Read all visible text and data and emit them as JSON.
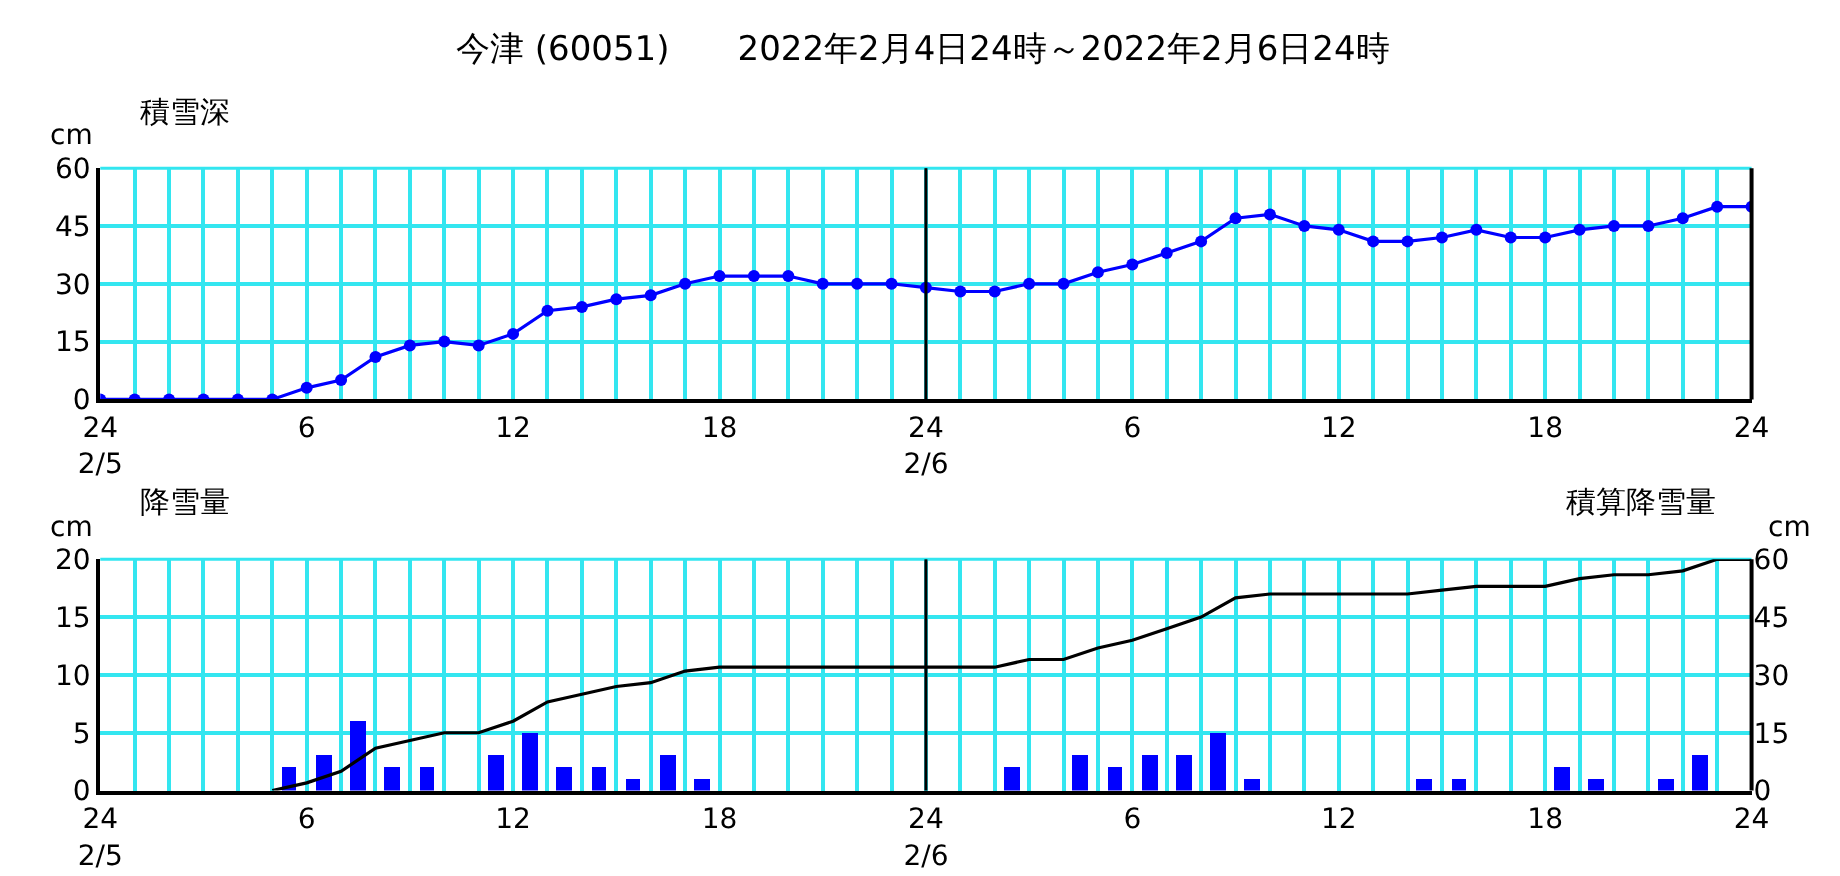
{
  "chart_data": [
    {
      "type": "line",
      "title": "今津 (60051)　　2022年2月4日24時～2022年2月6日24時",
      "ylabel": "cm",
      "annotations": [
        "積雪深"
      ],
      "x": [
        "2022-02-05T00:00",
        "2022-02-05T01:00",
        "2022-02-05T02:00",
        "2022-02-05T03:00",
        "2022-02-05T04:00",
        "2022-02-05T05:00",
        "2022-02-05T06:00",
        "2022-02-05T07:00",
        "2022-02-05T08:00",
        "2022-02-05T09:00",
        "2022-02-05T10:00",
        "2022-02-05T11:00",
        "2022-02-05T12:00",
        "2022-02-05T13:00",
        "2022-02-05T14:00",
        "2022-02-05T15:00",
        "2022-02-05T16:00",
        "2022-02-05T17:00",
        "2022-02-05T18:00",
        "2022-02-05T19:00",
        "2022-02-05T20:00",
        "2022-02-05T21:00",
        "2022-02-05T22:00",
        "2022-02-05T23:00",
        "2022-02-06T00:00",
        "2022-02-06T01:00",
        "2022-02-06T02:00",
        "2022-02-06T03:00",
        "2022-02-06T04:00",
        "2022-02-06T05:00",
        "2022-02-06T06:00",
        "2022-02-06T07:00",
        "2022-02-06T08:00",
        "2022-02-06T09:00",
        "2022-02-06T10:00",
        "2022-02-06T11:00",
        "2022-02-06T12:00",
        "2022-02-06T13:00",
        "2022-02-06T14:00",
        "2022-02-06T15:00",
        "2022-02-06T16:00",
        "2022-02-06T17:00",
        "2022-02-06T18:00",
        "2022-02-06T19:00",
        "2022-02-06T20:00",
        "2022-02-06T21:00",
        "2022-02-06T22:00",
        "2022-02-06T23:00",
        "2022-02-07T00:00"
      ],
      "series": [
        {
          "color": "#0000ff",
          "values": [
            0,
            0,
            0,
            0,
            0,
            0,
            3,
            5,
            11,
            14,
            15,
            14,
            17,
            23,
            24,
            26,
            27,
            30,
            32,
            32,
            32,
            30,
            30,
            30,
            29,
            28,
            28,
            30,
            30,
            33,
            35,
            38,
            41,
            47,
            48,
            45,
            44,
            41,
            41,
            42,
            44,
            42,
            42,
            44,
            45,
            45,
            47,
            50,
            50
          ]
        }
      ],
      "marker": "circle",
      "grid": true,
      "xlim": [
        "2022-02-05T00:00",
        "2022-02-07T00:00"
      ],
      "ylim": [
        0,
        60
      ],
      "yticks": [
        0,
        15,
        30,
        45,
        60
      ],
      "xticks": [
        {
          "value": "2022-02-05T00:00",
          "label": "24\n2/5"
        },
        {
          "value": "2022-02-05T01:00",
          "label": null
        },
        {
          "value": "2022-02-05T02:00",
          "label": null
        },
        {
          "value": "2022-02-05T03:00",
          "label": null
        },
        {
          "value": "2022-02-05T04:00",
          "label": null
        },
        {
          "value": "2022-02-05T05:00",
          "label": null
        },
        {
          "value": "2022-02-05T06:00",
          "label": "6"
        },
        {
          "value": "2022-02-05T07:00",
          "label": null
        },
        {
          "value": "2022-02-05T08:00",
          "label": null
        },
        {
          "value": "2022-02-05T09:00",
          "label": null
        },
        {
          "value": "2022-02-05T10:00",
          "label": null
        },
        {
          "value": "2022-02-05T11:00",
          "label": null
        },
        {
          "value": "2022-02-05T12:00",
          "label": "12"
        },
        {
          "value": "2022-02-05T13:00",
          "label": null
        },
        {
          "value": "2022-02-05T14:00",
          "label": null
        },
        {
          "value": "2022-02-05T15:00",
          "label": null
        },
        {
          "value": "2022-02-05T16:00",
          "label": null
        },
        {
          "value": "2022-02-05T17:00",
          "label": null
        },
        {
          "value": "2022-02-05T18:00",
          "label": "18"
        },
        {
          "value": "2022-02-05T19:00",
          "label": null
        },
        {
          "value": "2022-02-05T20:00",
          "label": null
        },
        {
          "value": "2022-02-05T21:00",
          "label": null
        },
        {
          "value": "2022-02-05T22:00",
          "label": null
        },
        {
          "value": "2022-02-05T23:00",
          "label": null
        },
        {
          "value": "2022-02-06T00:00",
          "label": "24\n2/6"
        },
        {
          "value": "2022-02-06T01:00",
          "label": null
        },
        {
          "value": "2022-02-06T02:00",
          "label": null
        },
        {
          "value": "2022-02-06T03:00",
          "label": null
        },
        {
          "value": "2022-02-06T04:00",
          "label": null
        },
        {
          "value": "2022-02-06T05:00",
          "label": null
        },
        {
          "value": "2022-02-06T06:00",
          "label": "6"
        },
        {
          "value": "2022-02-06T07:00",
          "label": null
        },
        {
          "value": "2022-02-06T08:00",
          "label": null
        },
        {
          "value": "2022-02-06T09:00",
          "label": null
        },
        {
          "value": "2022-02-06T10:00",
          "label": null
        },
        {
          "value": "2022-02-06T11:00",
          "label": null
        },
        {
          "value": "2022-02-06T12:00",
          "label": "12"
        },
        {
          "value": "2022-02-06T13:00",
          "label": null
        },
        {
          "value": "2022-02-06T14:00",
          "label": null
        },
        {
          "value": "2022-02-06T15:00",
          "label": null
        },
        {
          "value": "2022-02-06T16:00",
          "label": null
        },
        {
          "value": "2022-02-06T17:00",
          "label": null
        },
        {
          "value": "2022-02-06T18:00",
          "label": "18"
        },
        {
          "value": "2022-02-06T19:00",
          "label": null
        },
        {
          "value": "2022-02-06T20:00",
          "label": null
        },
        {
          "value": "2022-02-06T21:00",
          "label": null
        },
        {
          "value": "2022-02-06T22:00",
          "label": null
        },
        {
          "value": "2022-02-06T23:00",
          "label": null
        },
        {
          "value": "2022-02-07T00:00",
          "label": "24"
        }
      ],
      "ref_lines": [
        {
          "axis": "x",
          "value": "2022-02-06T00:00",
          "color": "#000000"
        }
      ]
    },
    {
      "type": "bar",
      "ylabel": "cm",
      "y2label": "cm",
      "annotations": [
        "降雪量",
        "積算降雪量"
      ],
      "series": [
        {
          "type": "bar",
          "color": "#0000ff",
          "x": [
            "2022-02-05T00:30",
            "2022-02-05T01:30",
            "2022-02-05T02:30",
            "2022-02-05T03:30",
            "2022-02-05T04:30",
            "2022-02-05T05:30",
            "2022-02-05T06:30",
            "2022-02-05T07:30",
            "2022-02-05T08:30",
            "2022-02-05T09:30",
            "2022-02-05T10:30",
            "2022-02-05T11:30",
            "2022-02-05T12:30",
            "2022-02-05T13:30",
            "2022-02-05T14:30",
            "2022-02-05T15:30",
            "2022-02-05T16:30",
            "2022-02-05T17:30",
            "2022-02-05T18:30",
            "2022-02-05T19:30",
            "2022-02-05T20:30",
            "2022-02-05T21:30",
            "2022-02-05T22:30",
            "2022-02-05T23:30",
            "2022-02-06T00:30",
            "2022-02-06T01:30",
            "2022-02-06T02:30",
            "2022-02-06T03:30",
            "2022-02-06T04:30",
            "2022-02-06T05:30",
            "2022-02-06T06:30",
            "2022-02-06T07:30",
            "2022-02-06T08:30",
            "2022-02-06T09:30",
            "2022-02-06T10:30",
            "2022-02-06T11:30",
            "2022-02-06T12:30",
            "2022-02-06T13:30",
            "2022-02-06T14:30",
            "2022-02-06T15:30",
            "2022-02-06T16:30",
            "2022-02-06T17:30",
            "2022-02-06T18:30",
            "2022-02-06T19:30",
            "2022-02-06T20:30",
            "2022-02-06T21:30",
            "2022-02-06T22:30",
            "2022-02-06T23:30"
          ],
          "values": [
            0,
            0,
            0,
            0,
            0,
            2,
            3,
            6,
            2,
            2,
            0,
            3,
            5,
            2,
            2,
            1,
            3,
            1,
            0,
            0,
            0,
            0,
            0,
            0,
            0,
            0,
            2,
            0,
            3,
            2,
            3,
            3,
            5,
            1,
            0,
            0,
            0,
            0,
            1,
            1,
            0,
            0,
            2,
            1,
            0,
            1,
            3,
            0
          ]
        },
        {
          "type": "line",
          "axis": "y2",
          "color": "#000000",
          "x": [
            "2022-02-05T05:00",
            "2022-02-05T06:00",
            "2022-02-05T07:00",
            "2022-02-05T08:00",
            "2022-02-05T09:00",
            "2022-02-05T10:00",
            "2022-02-05T11:00",
            "2022-02-05T12:00",
            "2022-02-05T13:00",
            "2022-02-05T14:00",
            "2022-02-05T15:00",
            "2022-02-05T16:00",
            "2022-02-05T17:00",
            "2022-02-05T18:00",
            "2022-02-05T19:00",
            "2022-02-05T20:00",
            "2022-02-05T21:00",
            "2022-02-05T22:00",
            "2022-02-05T23:00",
            "2022-02-06T00:00",
            "2022-02-06T01:00",
            "2022-02-06T02:00",
            "2022-02-06T03:00",
            "2022-02-06T04:00",
            "2022-02-06T05:00",
            "2022-02-06T06:00",
            "2022-02-06T07:00",
            "2022-02-06T08:00",
            "2022-02-06T09:00",
            "2022-02-06T10:00",
            "2022-02-06T11:00",
            "2022-02-06T12:00",
            "2022-02-06T13:00",
            "2022-02-06T14:00",
            "2022-02-06T15:00",
            "2022-02-06T16:00",
            "2022-02-06T17:00",
            "2022-02-06T18:00",
            "2022-02-06T19:00",
            "2022-02-06T20:00",
            "2022-02-06T21:00",
            "2022-02-06T22:00",
            "2022-02-06T23:00",
            "2022-02-07T00:00"
          ],
          "values": [
            0,
            2,
            5,
            11,
            13,
            15,
            15,
            18,
            23,
            25,
            27,
            28,
            31,
            32,
            32,
            32,
            32,
            32,
            32,
            32,
            32,
            32,
            34,
            34,
            37,
            39,
            42,
            45,
            50,
            51,
            51,
            51,
            51,
            51,
            52,
            53,
            53,
            53,
            55,
            56,
            56,
            57,
            60,
            60
          ]
        }
      ],
      "marker": "none",
      "grid": true,
      "xlim": [
        "2022-02-05T00:00",
        "2022-02-07T00:00"
      ],
      "ylim": [
        0,
        20
      ],
      "yticks": [
        0,
        5,
        10,
        15,
        20
      ],
      "y2lim": [
        0,
        60
      ],
      "y2ticks": [
        0,
        15,
        30,
        45,
        60
      ],
      "xticks": [
        {
          "value": "2022-02-05T00:00",
          "label": "24\n2/5"
        },
        {
          "value": "2022-02-05T01:00",
          "label": null
        },
        {
          "value": "2022-02-05T02:00",
          "label": null
        },
        {
          "value": "2022-02-05T03:00",
          "label": null
        },
        {
          "value": "2022-02-05T04:00",
          "label": null
        },
        {
          "value": "2022-02-05T05:00",
          "label": null
        },
        {
          "value": "2022-02-05T06:00",
          "label": "6"
        },
        {
          "value": "2022-02-05T07:00",
          "label": null
        },
        {
          "value": "2022-02-05T08:00",
          "label": null
        },
        {
          "value": "2022-02-05T09:00",
          "label": null
        },
        {
          "value": "2022-02-05T10:00",
          "label": null
        },
        {
          "value": "2022-02-05T11:00",
          "label": null
        },
        {
          "value": "2022-02-05T12:00",
          "label": "12"
        },
        {
          "value": "2022-02-05T13:00",
          "label": null
        },
        {
          "value": "2022-02-05T14:00",
          "label": null
        },
        {
          "value": "2022-02-05T15:00",
          "label": null
        },
        {
          "value": "2022-02-05T16:00",
          "label": null
        },
        {
          "value": "2022-02-05T17:00",
          "label": null
        },
        {
          "value": "2022-02-05T18:00",
          "label": "18"
        },
        {
          "value": "2022-02-05T19:00",
          "label": null
        },
        {
          "value": "2022-02-05T20:00",
          "label": null
        },
        {
          "value": "2022-02-05T21:00",
          "label": null
        },
        {
          "value": "2022-02-05T22:00",
          "label": null
        },
        {
          "value": "2022-02-05T23:00",
          "label": null
        },
        {
          "value": "2022-02-06T00:00",
          "label": "24\n2/6"
        },
        {
          "value": "2022-02-06T01:00",
          "label": null
        },
        {
          "value": "2022-02-06T02:00",
          "label": null
        },
        {
          "value": "2022-02-06T03:00",
          "label": null
        },
        {
          "value": "2022-02-06T04:00",
          "label": null
        },
        {
          "value": "2022-02-06T05:00",
          "label": null
        },
        {
          "value": "2022-02-06T06:00",
          "label": "6"
        },
        {
          "value": "2022-02-06T07:00",
          "label": null
        },
        {
          "value": "2022-02-06T08:00",
          "label": null
        },
        {
          "value": "2022-02-06T09:00",
          "label": null
        },
        {
          "value": "2022-02-06T10:00",
          "label": null
        },
        {
          "value": "2022-02-06T11:00",
          "label": null
        },
        {
          "value": "2022-02-06T12:00",
          "label": "12"
        },
        {
          "value": "2022-02-06T13:00",
          "label": null
        },
        {
          "value": "2022-02-06T14:00",
          "label": null
        },
        {
          "value": "2022-02-06T15:00",
          "label": null
        },
        {
          "value": "2022-02-06T16:00",
          "label": null
        },
        {
          "value": "2022-02-06T17:00",
          "label": null
        },
        {
          "value": "2022-02-06T18:00",
          "label": "18"
        },
        {
          "value": "2022-02-06T19:00",
          "label": null
        },
        {
          "value": "2022-02-06T20:00",
          "label": null
        },
        {
          "value": "2022-02-06T21:00",
          "label": null
        },
        {
          "value": "2022-02-06T22:00",
          "label": null
        },
        {
          "value": "2022-02-06T23:00",
          "label": null
        },
        {
          "value": "2022-02-07T00:00",
          "label": "24"
        }
      ],
      "ref_lines": [
        {
          "axis": "x",
          "value": "2022-02-06T00:00",
          "color": "#000000"
        }
      ]
    }
  ]
}
